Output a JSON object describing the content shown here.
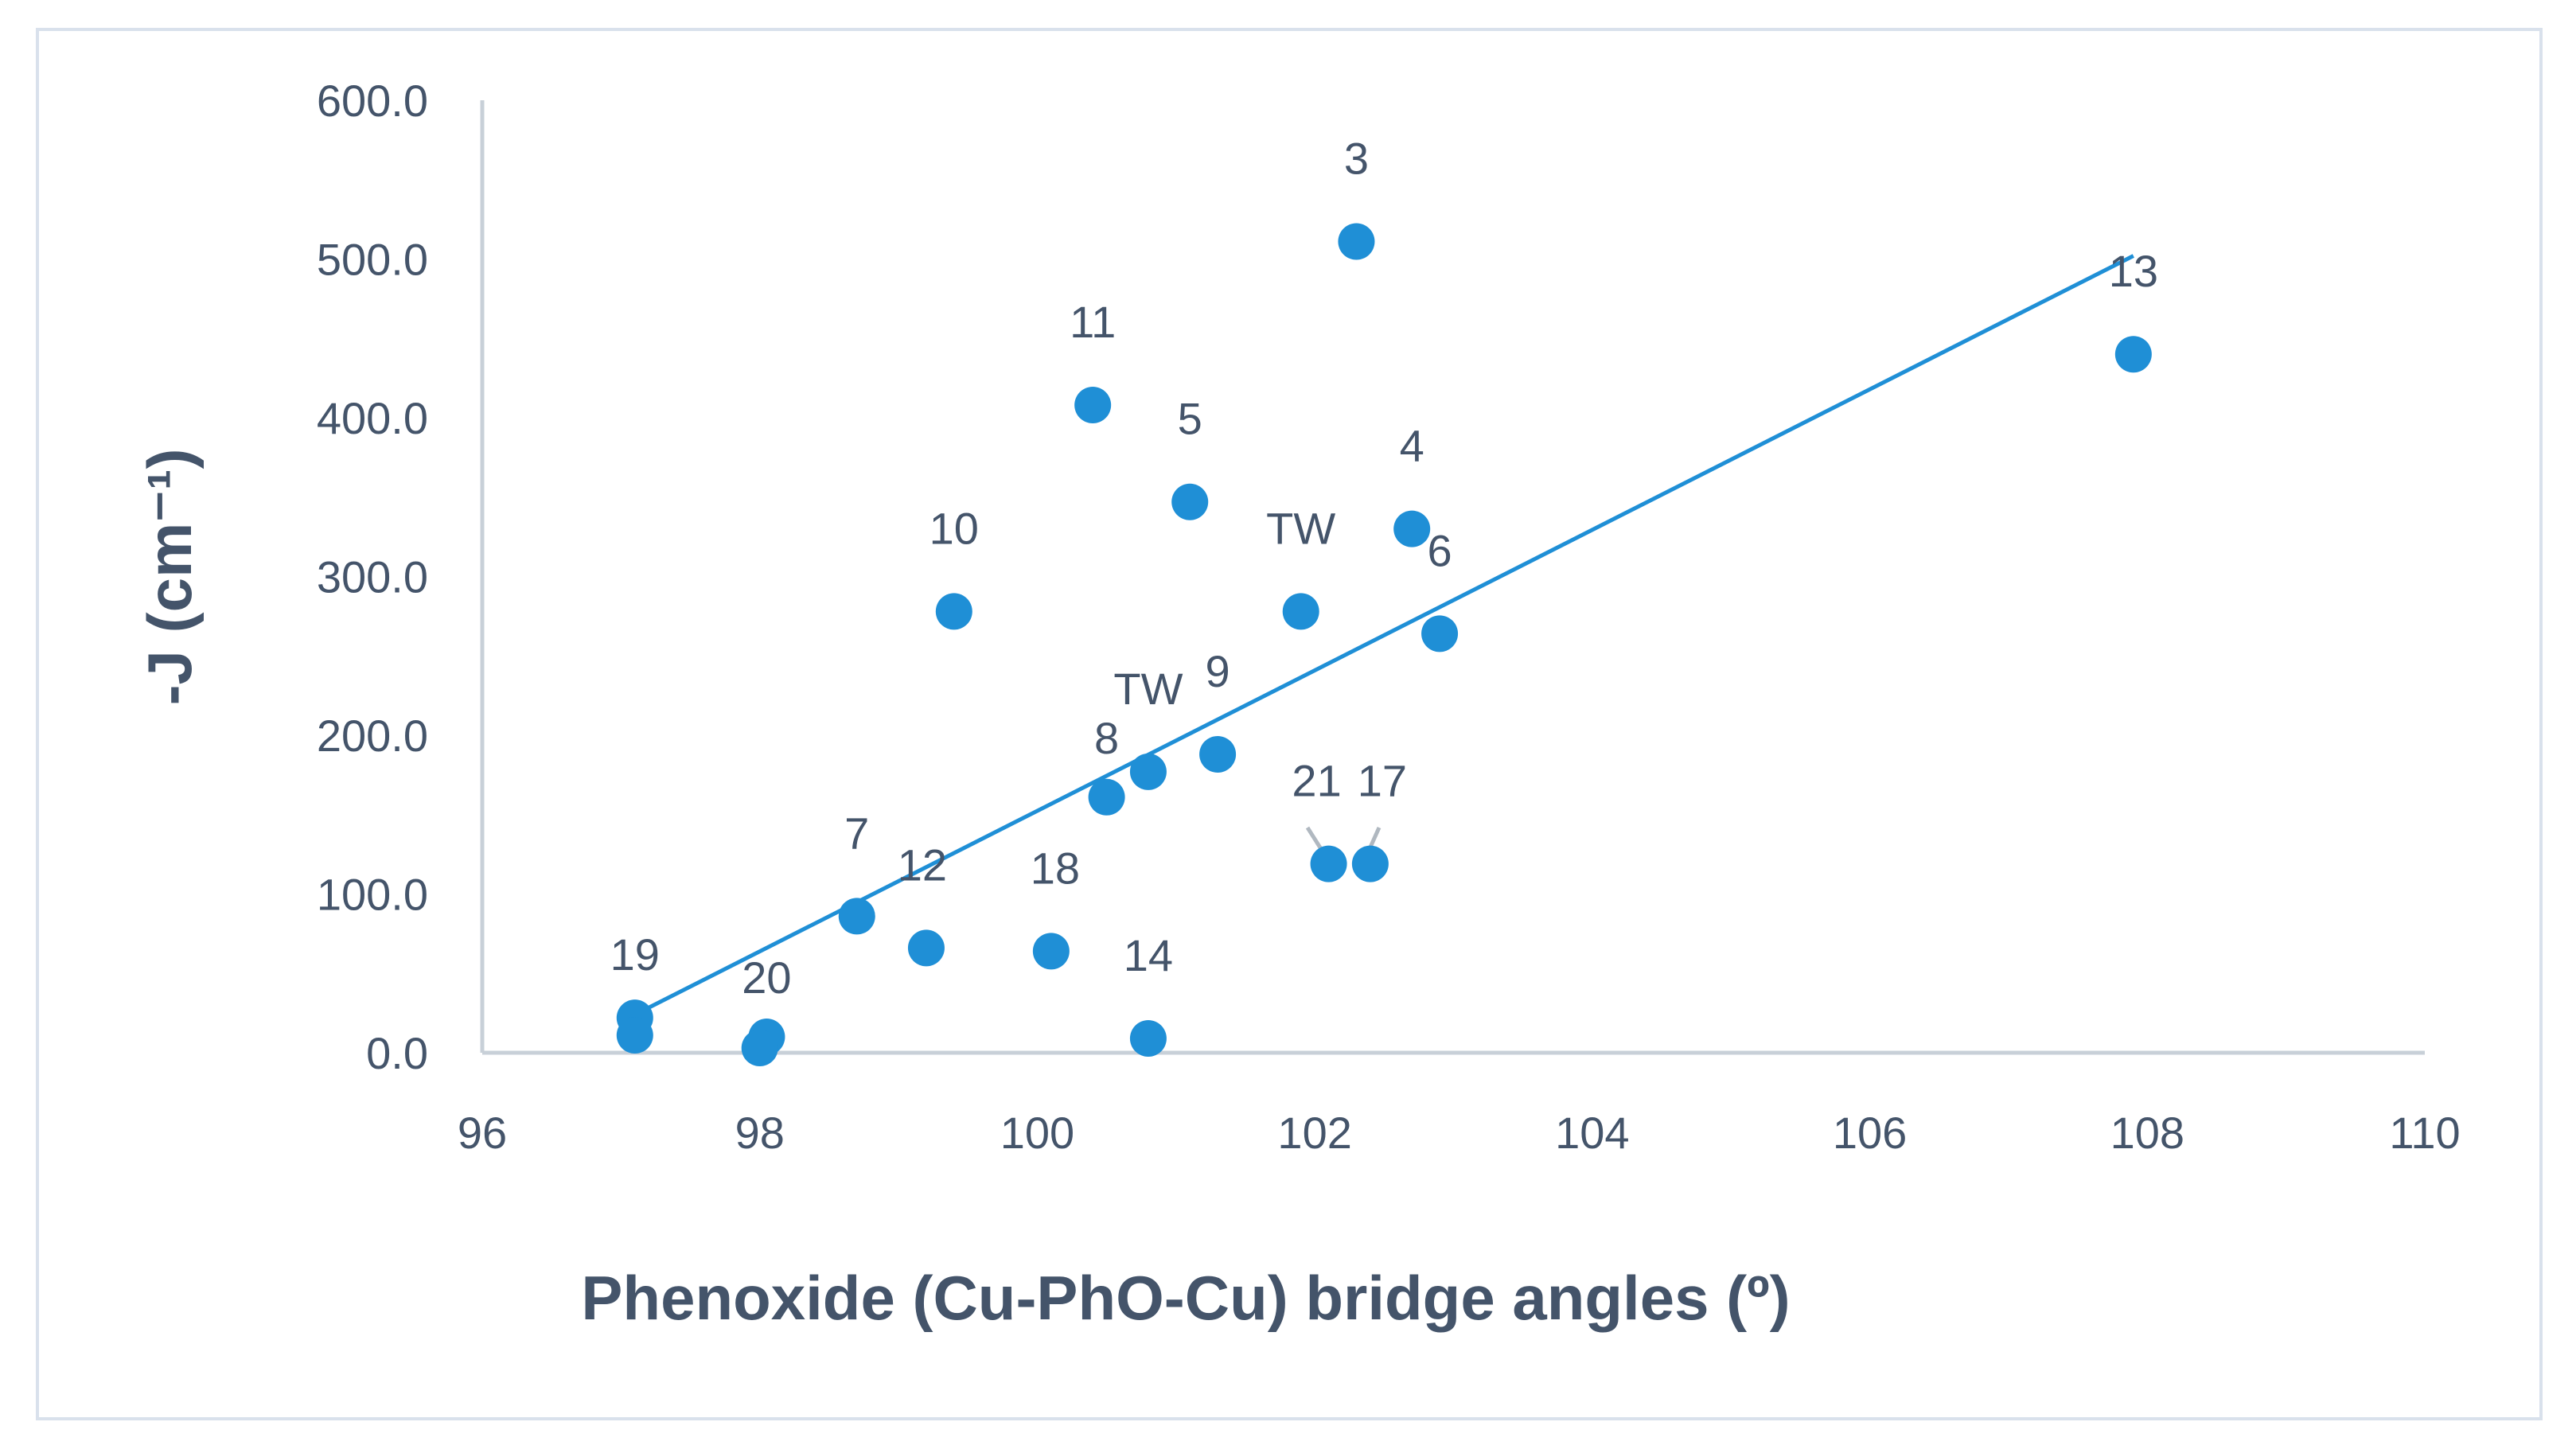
{
  "chart_data": {
    "type": "scatter",
    "xlabel": "Phenoxide (Cu-PhO-Cu) bridge angles (º)",
    "ylabel": "-J (cm⁻¹)",
    "xlim": [
      96,
      110
    ],
    "ylim": [
      0,
      600
    ],
    "x_ticks": [
      "96",
      "98",
      "100",
      "102",
      "104",
      "106",
      "108",
      "110"
    ],
    "y_ticks": [
      "0.0",
      "100.0",
      "200.0",
      "300.0",
      "400.0",
      "500.0",
      "600.0"
    ],
    "grid": false,
    "legend": "none",
    "marker_color": "#1f8fd6",
    "trendline": {
      "type": "linear",
      "color": "#1f8fd6",
      "from": [
        97.1,
        24
      ],
      "to": [
        107.9,
        502
      ]
    },
    "points": [
      {
        "label": "19",
        "x": 97.1,
        "y": 22
      },
      {
        "label": "",
        "x": 97.1,
        "y": 11
      },
      {
        "label": "20",
        "x": 98.05,
        "y": 10
      },
      {
        "label": "",
        "x": 98.0,
        "y": 3
      },
      {
        "label": "7",
        "x": 98.7,
        "y": 86
      },
      {
        "label": "12",
        "x": 99.2,
        "y": 66
      },
      {
        "label": "10",
        "x": 99.4,
        "y": 278
      },
      {
        "label": "18",
        "x": 100.1,
        "y": 64
      },
      {
        "label": "11",
        "x": 100.4,
        "y": 408
      },
      {
        "label": "8",
        "x": 100.5,
        "y": 161
      },
      {
        "label": "TW",
        "x": 100.8,
        "y": 177
      },
      {
        "label": "14",
        "x": 100.8,
        "y": 9
      },
      {
        "label": "5",
        "x": 101.1,
        "y": 347
      },
      {
        "label": "9",
        "x": 101.3,
        "y": 188
      },
      {
        "label": "TW",
        "x": 101.9,
        "y": 278
      },
      {
        "label": "21",
        "x": 102.1,
        "y": 119
      },
      {
        "label": "3",
        "x": 102.3,
        "y": 511
      },
      {
        "label": "17",
        "x": 102.4,
        "y": 119
      },
      {
        "label": "4",
        "x": 102.7,
        "y": 330
      },
      {
        "label": "6",
        "x": 102.9,
        "y": 264
      },
      {
        "label": "13",
        "x": 107.9,
        "y": 440
      }
    ]
  }
}
